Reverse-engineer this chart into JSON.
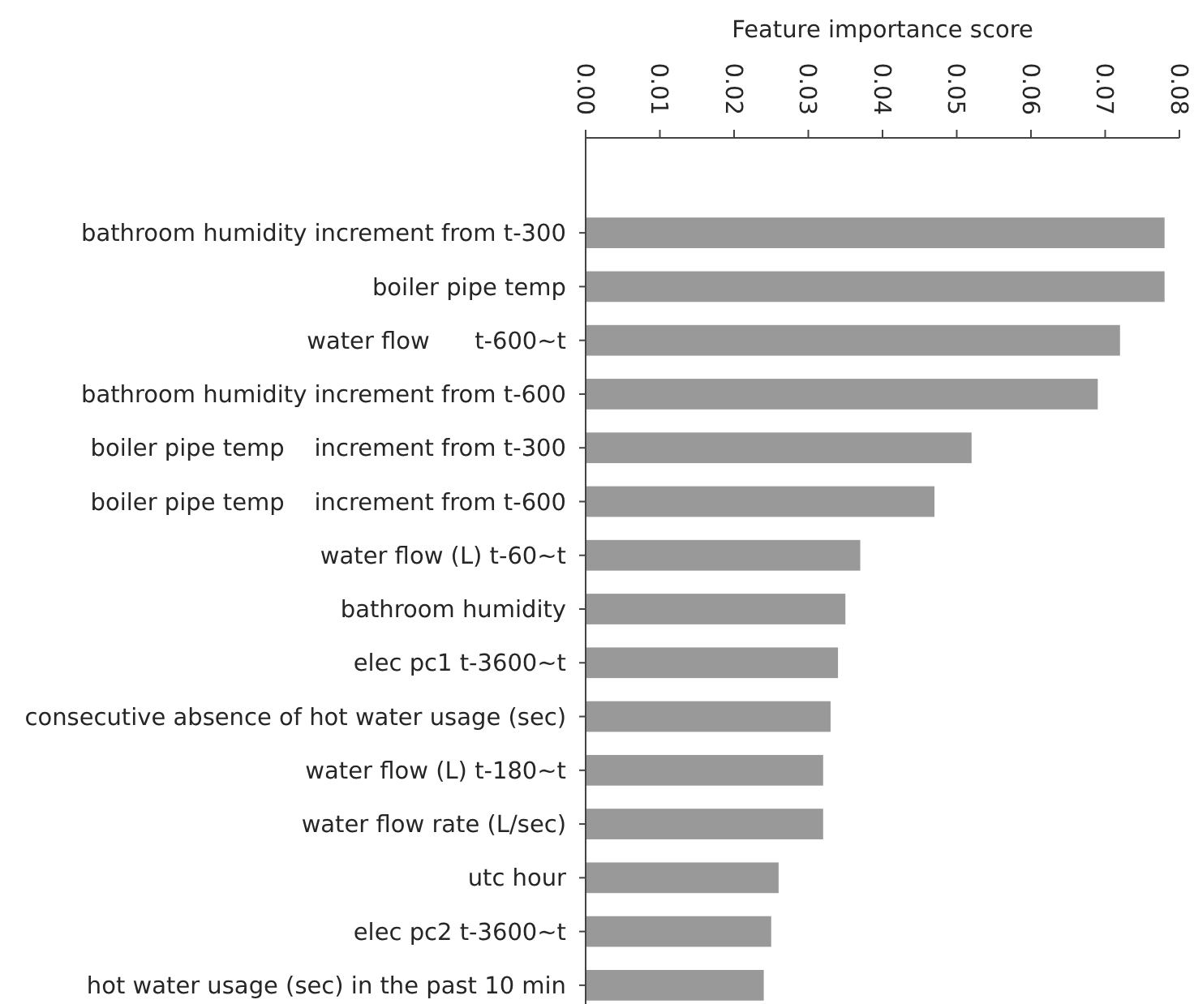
{
  "chart_data": {
    "type": "bar",
    "orientation": "horizontal",
    "xlabel": "Feature importance score",
    "categories": [
      "bathroom humidity increment from t-300",
      "boiler pipe temp",
      "water flow      t-600~t",
      "bathroom humidity increment from t-600",
      "boiler pipe temp    increment from t-300",
      "boiler pipe temp    increment from t-600",
      "water flow (L) t-60~t",
      "bathroom humidity",
      "elec pc1 t-3600~t",
      "consecutive absence of hot water usage (sec)",
      "water flow (L) t-180~t",
      "water flow rate (L/sec)",
      "utc hour",
      "elec pc2 t-3600~t",
      "hot water usage (sec) in the past 10 min"
    ],
    "values": [
      0.078,
      0.078,
      0.072,
      0.069,
      0.052,
      0.047,
      0.037,
      0.035,
      0.034,
      0.033,
      0.032,
      0.032,
      0.026,
      0.025,
      0.024
    ],
    "color": "#999999",
    "xlim": [
      0,
      0.08
    ],
    "xticks": [
      {
        "value": 0,
        "label": "0.00"
      },
      0.01,
      0.02,
      0.03,
      0.04,
      0.05,
      0.06,
      0.07,
      0.08
    ]
  }
}
